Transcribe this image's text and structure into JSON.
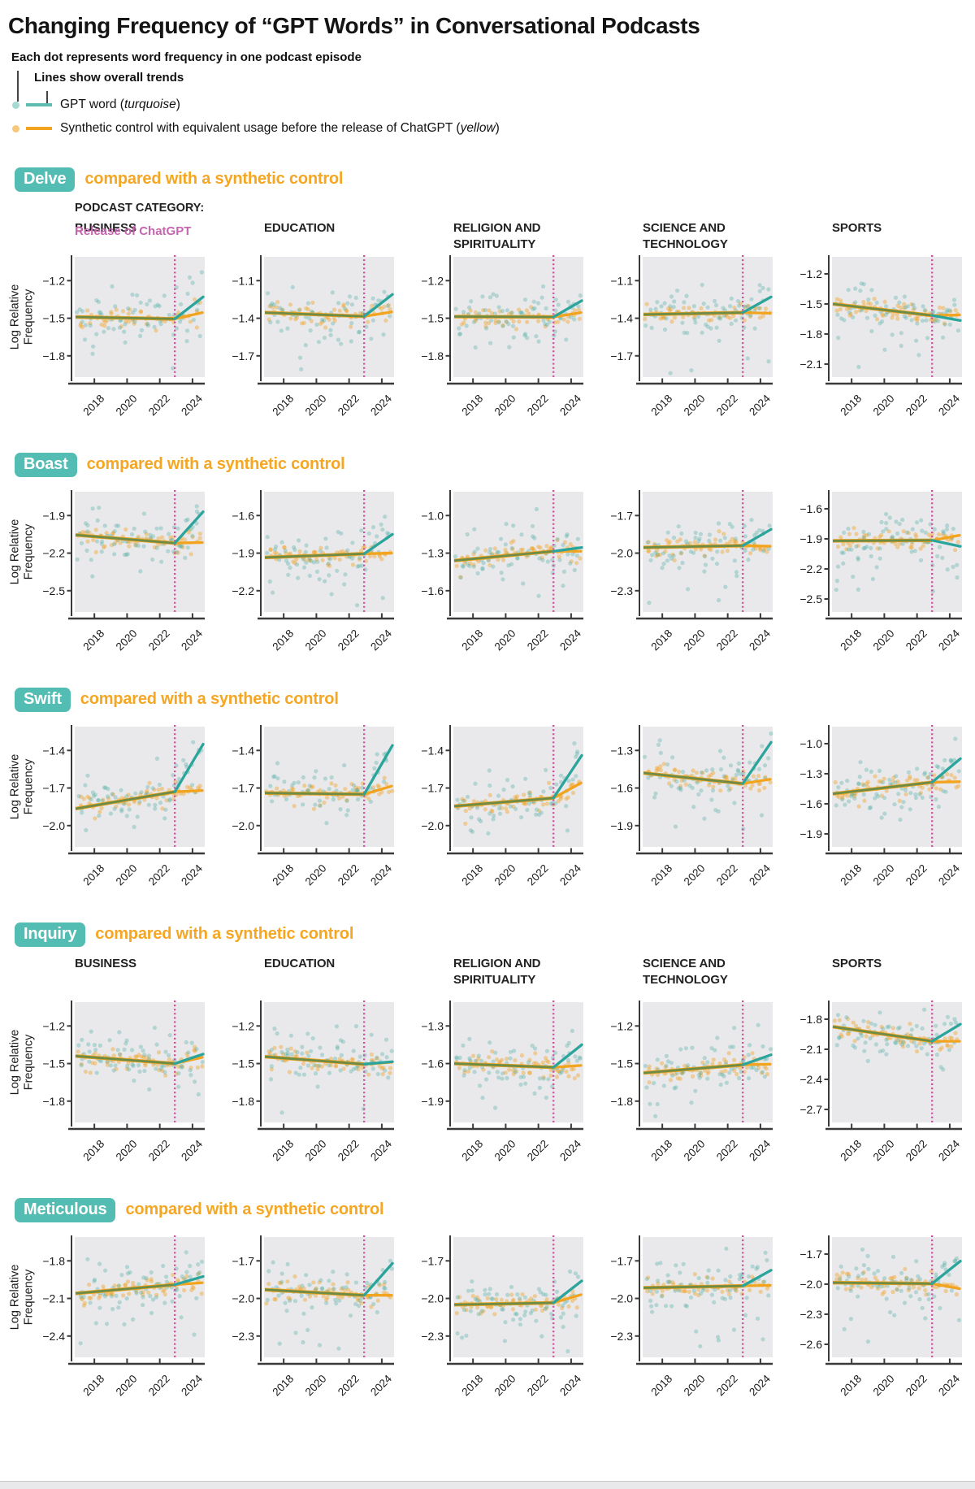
{
  "title": "Changing Frequency of “GPT Words” in Conversational Podcasts",
  "legend": {
    "note_dots": "Each dot represents word frequency in one podcast episode",
    "note_lines": "Lines show overall trends",
    "gpt": {
      "prefix": "GPT word (",
      "italic": "turquoise",
      "suffix": ")"
    },
    "control": {
      "prefix": "Synthetic control with equivalent usage before the release of ChatGPT (",
      "italic": "yellow",
      "suffix": ")"
    }
  },
  "labels": {
    "section_subtitle": "compared with a synthetic control",
    "podcast_category": "PODCAST CATEGORY:",
    "release": "Release of ChatGPT",
    "ylabel_lines": [
      "Log Relative",
      "Frequency"
    ]
  },
  "colors": {
    "turquoise_line": "#2ba59c",
    "turquoise_dot": "#46aaa2",
    "yellow_line": "#f2a41f",
    "yellow_dot": "#f0a125",
    "olive_pre_line": "#6f8c46",
    "release_pink": "#c9519e",
    "release_text": "#c565ae",
    "badge_bg": "#53bdb3",
    "subtitle_orange": "#f5a623",
    "panel_bg": "#e9e9eb",
    "axis": "#3a3a3a"
  },
  "chart_data": {
    "type": "scatter",
    "x": {
      "domain": [
        2016.8,
        2024.75
      ],
      "ticks": [
        2018,
        2020,
        2022,
        2024
      ],
      "release_x": 2022.92,
      "post_end_x": 2024.6
    },
    "categories": [
      {
        "name": "BUSINESS",
        "lines": [
          "BUSINESS"
        ]
      },
      {
        "name": "EDUCATION",
        "lines": [
          "EDUCATION"
        ]
      },
      {
        "name": "RELIGION AND SPIRITUALITY",
        "lines": [
          "RELIGION AND",
          "SPIRITUALITY"
        ]
      },
      {
        "name": "SCIENCE AND TECHNOLOGY",
        "lines": [
          "SCIENCE AND",
          "TECHNOLOGY"
        ]
      },
      {
        "name": "SPORTS",
        "lines": [
          "SPORTS"
        ]
      }
    ],
    "rows_with_headers": [
      0,
      3
    ],
    "ylabel": "Log Relative Frequency",
    "rows": [
      {
        "word": "Delve",
        "panels": [
          {
            "category": "BUSINESS",
            "yticks": [
              -1.2,
              -1.5,
              -1.8
            ],
            "ylim": [
              -1.97,
              -1.01
            ],
            "trend_pre": [
              -1.49,
              -1.505
            ],
            "gpt_post_end": -1.33,
            "control_post_end": -1.455
          },
          {
            "category": "EDUCATION",
            "yticks": [
              -1.1,
              -1.4,
              -1.7
            ],
            "ylim": [
              -1.87,
              -0.91
            ],
            "trend_pre": [
              -1.355,
              -1.385
            ],
            "gpt_post_end": -1.21,
            "control_post_end": -1.35
          },
          {
            "category": "RELIGION AND SPIRITUALITY",
            "yticks": [
              -1.2,
              -1.5,
              -1.8
            ],
            "ylim": [
              -1.97,
              -1.01
            ],
            "trend_pre": [
              -1.487,
              -1.49
            ],
            "gpt_post_end": -1.36,
            "control_post_end": -1.455
          },
          {
            "category": "SCIENCE AND TECHNOLOGY",
            "yticks": [
              -1.1,
              -1.4,
              -1.7
            ],
            "ylim": [
              -1.87,
              -0.91
            ],
            "trend_pre": [
              -1.37,
              -1.355
            ],
            "gpt_post_end": -1.23,
            "control_post_end": -1.36
          },
          {
            "category": "SPORTS",
            "yticks": [
              -1.2,
              -1.5,
              -1.8,
              -2.1
            ],
            "ylim": [
              -2.23,
              -1.03
            ],
            "trend_pre": [
              -1.5,
              -1.615
            ],
            "gpt_post_end": -1.665,
            "control_post_end": -1.61
          }
        ]
      },
      {
        "word": "Boast",
        "panels": [
          {
            "category": "BUSINESS",
            "yticks": [
              -1.9,
              -2.2,
              -2.5
            ],
            "ylim": [
              -2.67,
              -1.71
            ],
            "trend_pre": [
              -2.055,
              -2.12
            ],
            "gpt_post_end": -1.87,
            "control_post_end": -2.115
          },
          {
            "category": "EDUCATION",
            "yticks": [
              -1.6,
              -1.9,
              -2.2
            ],
            "ylim": [
              -2.37,
              -1.41
            ],
            "trend_pre": [
              -1.935,
              -1.905
            ],
            "gpt_post_end": -1.75,
            "control_post_end": -1.9
          },
          {
            "category": "RELIGION AND SPIRITUALITY",
            "yticks": [
              -1.0,
              -1.3,
              -1.6
            ],
            "ylim": [
              -1.77,
              -0.81
            ],
            "trend_pre": [
              -1.36,
              -1.285
            ],
            "gpt_post_end": -1.255,
            "control_post_end": -1.285
          },
          {
            "category": "SCIENCE AND TECHNOLOGY",
            "yticks": [
              -1.7,
              -2.0,
              -2.3
            ],
            "ylim": [
              -2.47,
              -1.51
            ],
            "trend_pre": [
              -1.955,
              -1.94
            ],
            "gpt_post_end": -1.81,
            "control_post_end": -1.945
          },
          {
            "category": "SPORTS",
            "yticks": [
              -1.6,
              -1.9,
              -2.2,
              -2.5
            ],
            "ylim": [
              -2.63,
              -1.43
            ],
            "trend_pre": [
              -1.92,
              -1.915
            ],
            "gpt_post_end": -1.975,
            "control_post_end": -1.865
          }
        ]
      },
      {
        "word": "Swift",
        "panels": [
          {
            "category": "BUSINESS",
            "yticks": [
              -1.4,
              -1.7,
              -2.0
            ],
            "ylim": [
              -2.17,
              -1.21
            ],
            "trend_pre": [
              -1.865,
              -1.73
            ],
            "gpt_post_end": -1.35,
            "control_post_end": -1.72
          },
          {
            "category": "EDUCATION",
            "yticks": [
              -1.4,
              -1.7,
              -2.0
            ],
            "ylim": [
              -2.17,
              -1.21
            ],
            "trend_pre": [
              -1.74,
              -1.75
            ],
            "gpt_post_end": -1.36,
            "control_post_end": -1.685
          },
          {
            "category": "RELIGION AND SPIRITUALITY",
            "yticks": [
              -1.4,
              -1.7,
              -2.0
            ],
            "ylim": [
              -2.17,
              -1.21
            ],
            "trend_pre": [
              -1.845,
              -1.78
            ],
            "gpt_post_end": -1.44,
            "control_post_end": -1.66
          },
          {
            "category": "SCIENCE AND TECHNOLOGY",
            "yticks": [
              -1.3,
              -1.6,
              -1.9
            ],
            "ylim": [
              -2.07,
              -1.11
            ],
            "trend_pre": [
              -1.48,
              -1.565
            ],
            "gpt_post_end": -1.235,
            "control_post_end": -1.53
          },
          {
            "category": "SPORTS",
            "yticks": [
              -1.0,
              -1.3,
              -1.6,
              -1.9
            ],
            "ylim": [
              -2.03,
              -0.83
            ],
            "trend_pre": [
              -1.5,
              -1.385
            ],
            "gpt_post_end": -1.15,
            "control_post_end": -1.38
          }
        ]
      },
      {
        "word": "Inquiry",
        "panels": [
          {
            "category": "BUSINESS",
            "yticks": [
              -1.2,
              -1.5,
              -1.8
            ],
            "ylim": [
              -1.97,
              -1.01
            ],
            "trend_pre": [
              -1.44,
              -1.5
            ],
            "gpt_post_end": -1.425,
            "control_post_end": -1.45
          },
          {
            "category": "EDUCATION",
            "yticks": [
              -1.2,
              -1.5,
              -1.8
            ],
            "ylim": [
              -1.97,
              -1.01
            ],
            "trend_pre": [
              -1.445,
              -1.505
            ],
            "gpt_post_end": -1.485,
            "control_post_end": -1.49
          },
          {
            "category": "RELIGION AND SPIRITUALITY",
            "yticks": [
              -1.3,
              -1.6,
              -1.9
            ],
            "ylim": [
              -2.07,
              -1.11
            ],
            "trend_pre": [
              -1.6,
              -1.63
            ],
            "gpt_post_end": -1.45,
            "control_post_end": -1.615
          },
          {
            "category": "SCIENCE AND TECHNOLOGY",
            "yticks": [
              -1.2,
              -1.5,
              -1.8
            ],
            "ylim": [
              -1.97,
              -1.01
            ],
            "trend_pre": [
              -1.575,
              -1.51
            ],
            "gpt_post_end": -1.43,
            "control_post_end": -1.505
          },
          {
            "category": "SPORTS",
            "yticks": [
              -1.8,
              -2.1,
              -2.4,
              -2.7
            ],
            "ylim": [
              -2.83,
              -1.63
            ],
            "trend_pre": [
              -1.875,
              -2.02
            ],
            "gpt_post_end": -1.85,
            "control_post_end": -2.02
          }
        ]
      },
      {
        "word": "Meticulous",
        "panels": [
          {
            "category": "BUSINESS",
            "yticks": [
              -1.8,
              -2.1,
              -2.4
            ],
            "ylim": [
              -2.57,
              -1.61
            ],
            "trend_pre": [
              -2.06,
              -1.99
            ],
            "gpt_post_end": -1.925,
            "control_post_end": -1.975
          },
          {
            "category": "EDUCATION",
            "yticks": [
              -1.7,
              -2.0,
              -2.3
            ],
            "ylim": [
              -2.47,
              -1.51
            ],
            "trend_pre": [
              -1.93,
              -1.975
            ],
            "gpt_post_end": -1.72,
            "control_post_end": -1.975
          },
          {
            "category": "RELIGION AND SPIRITUALITY",
            "yticks": [
              -1.7,
              -2.0,
              -2.3
            ],
            "ylim": [
              -2.47,
              -1.51
            ],
            "trend_pre": [
              -2.05,
              -2.035
            ],
            "gpt_post_end": -1.86,
            "control_post_end": -1.97
          },
          {
            "category": "SCIENCE AND TECHNOLOGY",
            "yticks": [
              -1.7,
              -2.0,
              -2.3
            ],
            "ylim": [
              -2.47,
              -1.51
            ],
            "trend_pre": [
              -1.915,
              -1.9
            ],
            "gpt_post_end": -1.775,
            "control_post_end": -1.895
          },
          {
            "category": "SPORTS",
            "yticks": [
              -1.7,
              -2.0,
              -2.3,
              -2.6
            ],
            "ylim": [
              -2.73,
              -1.53
            ],
            "trend_pre": [
              -1.985,
              -1.995
            ],
            "gpt_post_end": -1.77,
            "control_post_end": -2.045
          }
        ]
      }
    ]
  }
}
